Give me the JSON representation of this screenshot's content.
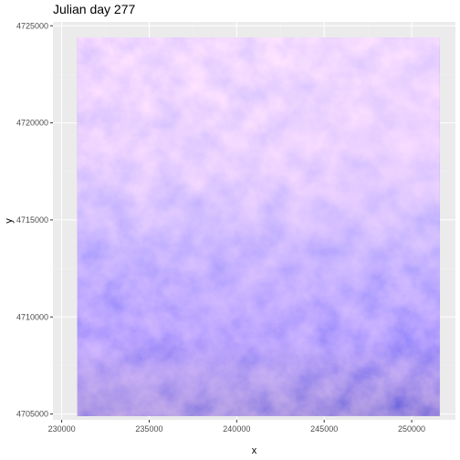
{
  "chart_data": {
    "type": "heatmap",
    "title": "Julian day 277",
    "xlabel": "x",
    "ylabel": "y",
    "xlim": [
      229500,
      252500
    ],
    "ylim": [
      4704700,
      4725200
    ],
    "x_ticks": [
      230000,
      235000,
      240000,
      245000,
      250000
    ],
    "y_ticks": [
      4705000,
      4710000,
      4715000,
      4720000,
      4725000
    ],
    "x_tick_labels": [
      "230000",
      "235000",
      "240000",
      "245000",
      "250000"
    ],
    "y_tick_labels": [
      "4705000",
      "4710000",
      "4715000",
      "4720000",
      "4725000"
    ],
    "raster_extent": {
      "x": [
        230900,
        251600
      ],
      "y": [
        4704900,
        4724400
      ]
    },
    "grid": true,
    "legend": "none",
    "colors": {
      "panel_background": "#ebebeb",
      "grid_major": "#ffffff",
      "grid_minor": "#f2f2f2",
      "low": "#1a1a66",
      "mid": "#6a5cf0",
      "high": "#ffe8ff"
    }
  }
}
